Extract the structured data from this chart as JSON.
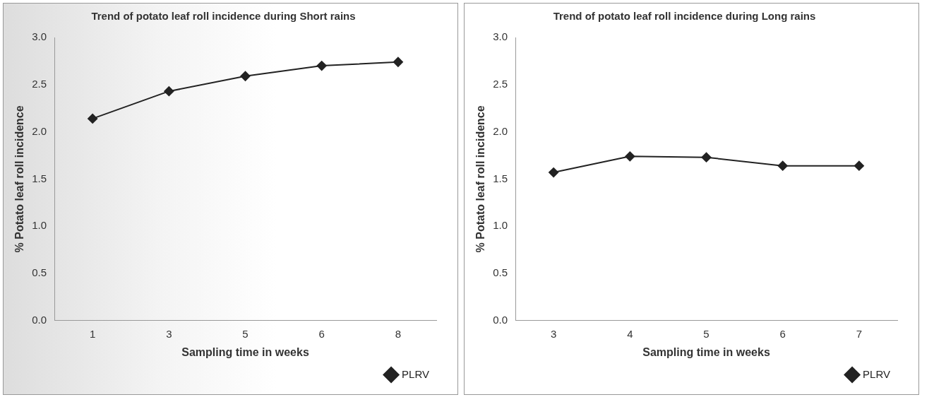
{
  "chart_data": [
    {
      "type": "line",
      "title": "Trend of potato leaf roll incidence during Short rains",
      "xlabel": "Sampling time in weeks",
      "ylabel": "% Potato leaf roll incidence",
      "categories": [
        "1",
        "3",
        "5",
        "6",
        "8"
      ],
      "series": [
        {
          "name": "PLRV",
          "color": "#222222",
          "values": [
            2.14,
            2.43,
            2.59,
            2.7,
            2.74
          ]
        }
      ],
      "ylim": [
        0,
        3
      ],
      "yticks": [
        {
          "value": 0,
          "label": "0.0"
        },
        0.5,
        {
          "value": 1,
          "label": "1.0"
        },
        1.5,
        {
          "value": 2,
          "label": "2.0"
        },
        2.5,
        {
          "value": 3,
          "label": "3.0"
        }
      ],
      "grid": false,
      "legend": "bottom right",
      "marker": "diamond",
      "line_style": "solid"
    },
    {
      "type": "line",
      "title": "Trend of potato leaf roll incidence during Long rains",
      "xlabel": "Sampling time in weeks",
      "ylabel": "% Potato leaf roll incidence",
      "categories": [
        "3",
        "4",
        "5",
        "6",
        "7"
      ],
      "series": [
        {
          "name": "PLRV",
          "color": "#222222",
          "values": [
            1.57,
            1.74,
            1.73,
            1.64,
            1.64
          ]
        }
      ],
      "ylim": [
        0,
        3
      ],
      "yticks": [
        {
          "value": 0,
          "label": "0.0"
        },
        0.5,
        {
          "value": 1,
          "label": "1.0"
        },
        1.5,
        {
          "value": 2,
          "label": "2.0"
        },
        2.5,
        {
          "value": 3,
          "label": "3.0"
        }
      ],
      "grid": false,
      "legend": "bottom right",
      "marker": "diamond",
      "line_style": "solid"
    }
  ]
}
